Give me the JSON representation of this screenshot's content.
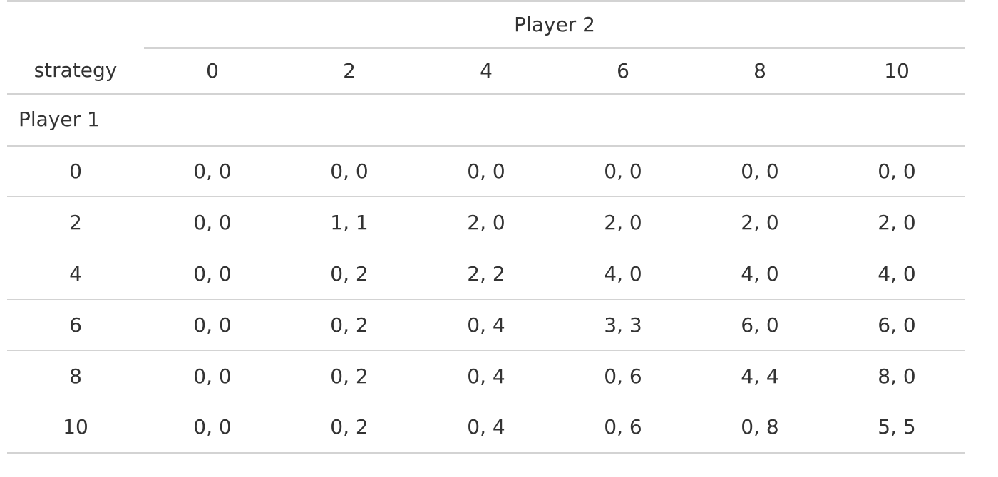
{
  "table": {
    "spanner_label": "Player 2",
    "stub_header": "strategy",
    "columns": [
      "0",
      "2",
      "4",
      "6",
      "8",
      "10"
    ],
    "row_group_label": "Player 1",
    "rows": [
      {
        "label": "0",
        "cells": [
          "0, 0",
          "0, 0",
          "0, 0",
          "0, 0",
          "0, 0",
          "0, 0"
        ]
      },
      {
        "label": "2",
        "cells": [
          "0, 0",
          "1, 1",
          "2, 0",
          "2, 0",
          "2, 0",
          "2, 0"
        ]
      },
      {
        "label": "4",
        "cells": [
          "0, 0",
          "0, 2",
          "2, 2",
          "4, 0",
          "4, 0",
          "4, 0"
        ]
      },
      {
        "label": "6",
        "cells": [
          "0, 0",
          "0, 2",
          "0, 4",
          "3, 3",
          "6, 0",
          "6, 0"
        ]
      },
      {
        "label": "8",
        "cells": [
          "0, 0",
          "0, 2",
          "0, 4",
          "0, 6",
          "4, 4",
          "8, 0"
        ]
      },
      {
        "label": "10",
        "cells": [
          "0, 0",
          "0, 2",
          "0, 4",
          "0, 6",
          "0, 8",
          "5, 5"
        ]
      }
    ]
  }
}
